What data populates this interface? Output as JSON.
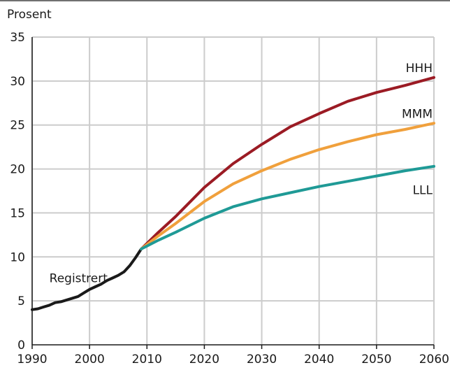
{
  "chart_data": {
    "type": "line",
    "ylabel": "Prosent",
    "xlim": [
      1990,
      2060
    ],
    "ylim": [
      0,
      35
    ],
    "x_ticks": [
      1990,
      2000,
      2010,
      2020,
      2030,
      2040,
      2050,
      2060
    ],
    "y_ticks": [
      0,
      5,
      10,
      15,
      20,
      25,
      30,
      35
    ],
    "grid": true,
    "series": [
      {
        "name": "Registrert",
        "color": "#1a1a1a",
        "x": [
          1990,
          1991,
          1992,
          1993,
          1994,
          1995,
          1996,
          1997,
          1998,
          1999,
          2000,
          2001,
          2002,
          2003,
          2004,
          2005,
          2006,
          2007,
          2008,
          2009
        ],
        "y": [
          4.0,
          4.1,
          4.3,
          4.5,
          4.8,
          4.9,
          5.1,
          5.3,
          5.5,
          5.9,
          6.3,
          6.6,
          6.9,
          7.3,
          7.6,
          7.9,
          8.3,
          9.0,
          9.9,
          10.9
        ]
      },
      {
        "name": "HHH",
        "color": "#9b1b24",
        "x": [
          2009,
          2012,
          2015,
          2020,
          2025,
          2030,
          2035,
          2040,
          2045,
          2050,
          2055,
          2060
        ],
        "y": [
          10.9,
          12.8,
          14.6,
          17.9,
          20.6,
          22.8,
          24.8,
          26.3,
          27.7,
          28.7,
          29.5,
          30.4
        ]
      },
      {
        "name": "MMM",
        "color": "#f0a03c",
        "x": [
          2009,
          2012,
          2015,
          2020,
          2025,
          2030,
          2035,
          2040,
          2045,
          2050,
          2055,
          2060
        ],
        "y": [
          10.9,
          12.4,
          13.8,
          16.3,
          18.3,
          19.8,
          21.1,
          22.2,
          23.1,
          23.9,
          24.5,
          25.2
        ]
      },
      {
        "name": "LLL",
        "color": "#1f9a96",
        "x": [
          2009,
          2012,
          2015,
          2020,
          2025,
          2030,
          2035,
          2040,
          2045,
          2050,
          2055,
          2060
        ],
        "y": [
          10.9,
          11.9,
          12.8,
          14.4,
          15.7,
          16.6,
          17.3,
          18.0,
          18.6,
          19.2,
          19.8,
          20.3
        ]
      }
    ]
  }
}
